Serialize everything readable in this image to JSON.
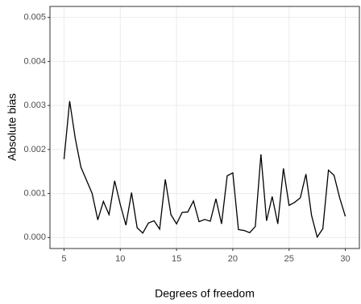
{
  "chart_data": {
    "type": "line",
    "x_label": "Degrees of freedom",
    "y_label": "Absolute bias",
    "x": [
      5,
      5.5,
      6,
      6.5,
      7,
      7.5,
      8,
      8.5,
      9,
      9.5,
      10,
      10.5,
      11,
      11.5,
      12,
      12.5,
      13,
      13.5,
      14,
      14.5,
      15,
      15.5,
      16,
      16.5,
      17,
      17.5,
      18,
      18.5,
      19,
      19.5,
      20,
      20.5,
      21,
      21.5,
      22,
      22.5,
      23,
      23.5,
      24,
      24.5,
      25,
      25.5,
      26,
      26.5,
      27,
      27.5,
      28,
      28.5,
      29,
      29.5,
      30
    ],
    "series": [
      {
        "color": "#000000",
        "values": [
          0.00178,
          0.0031,
          0.00225,
          0.0016,
          0.0013,
          0.001,
          0.0004,
          0.00082,
          0.00052,
          0.00129,
          0.00075,
          0.00028,
          0.00102,
          0.00022,
          0.0001,
          0.00033,
          0.00038,
          0.00019,
          0.00132,
          0.00052,
          0.00031,
          0.00057,
          0.00058,
          0.00083,
          0.00036,
          0.00041,
          0.00037,
          0.00088,
          0.00031,
          0.0014,
          0.00147,
          0.00018,
          0.00016,
          0.00011,
          0.00025,
          0.00189,
          0.00038,
          0.00093,
          0.00031,
          0.00157,
          0.00073,
          0.0008,
          0.0009,
          0.00144,
          0.0005,
          1e-05,
          0.0002,
          0.00153,
          0.00141,
          0.0009,
          0.00048
        ]
      }
    ],
    "xlim": [
      3.75,
      31.25
    ],
    "ylim": [
      -0.00025,
      0.00525
    ],
    "xticks": [
      5,
      10,
      15,
      20,
      25,
      30
    ],
    "yticks": [
      {
        "value": 0,
        "label": "0.000"
      },
      {
        "value": 0.001,
        "label": "0.001"
      },
      {
        "value": 0.002,
        "label": "0.002"
      },
      {
        "value": 0.003,
        "label": "0.003"
      },
      {
        "value": 0.004,
        "label": "0.004"
      },
      {
        "value": 0.005,
        "label": "0.005"
      }
    ],
    "grid": true
  }
}
